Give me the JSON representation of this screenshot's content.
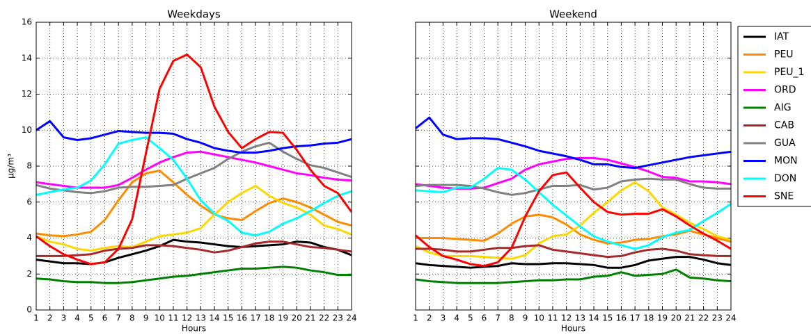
{
  "chart_data": [
    {
      "type": "line",
      "title": "Weekdays",
      "xlabel": "Hours",
      "ylabel": "µg/m³",
      "x": [
        1,
        2,
        3,
        4,
        5,
        6,
        7,
        8,
        9,
        10,
        11,
        12,
        13,
        14,
        15,
        16,
        17,
        18,
        19,
        20,
        21,
        22,
        23,
        24
      ],
      "xlim": [
        1,
        24
      ],
      "xticks": [
        1,
        2,
        3,
        4,
        5,
        6,
        7,
        8,
        9,
        10,
        11,
        12,
        13,
        14,
        15,
        16,
        17,
        18,
        19,
        20,
        21,
        22,
        23,
        24
      ],
      "ylim": [
        0,
        16
      ],
      "yticks": [
        0,
        2,
        4,
        6,
        8,
        10,
        12,
        14,
        16
      ],
      "grid": true,
      "show_ytick_labels": true,
      "series": [
        {
          "color": "#000000",
          "values": [
            2.8,
            2.7,
            2.6,
            2.6,
            2.55,
            2.65,
            2.9,
            3.1,
            3.3,
            3.55,
            3.9,
            3.8,
            3.75,
            3.65,
            3.55,
            3.5,
            3.55,
            3.6,
            3.65,
            3.8,
            3.75,
            3.5,
            3.35,
            3.05
          ]
        },
        {
          "color": "#ff8c00",
          "values": [
            4.25,
            4.15,
            4.1,
            4.2,
            4.35,
            5.0,
            6.1,
            7.1,
            7.6,
            7.75,
            7.1,
            6.4,
            5.8,
            5.3,
            5.1,
            5.0,
            5.5,
            5.95,
            6.2,
            6.0,
            5.7,
            5.3,
            4.9,
            4.7
          ]
        },
        {
          "color": "#ffd700",
          "values": [
            4.1,
            3.8,
            3.65,
            3.4,
            3.3,
            3.45,
            3.55,
            3.5,
            3.8,
            4.1,
            4.2,
            4.3,
            4.55,
            5.3,
            6.0,
            6.5,
            6.9,
            6.35,
            5.95,
            5.7,
            5.3,
            4.7,
            4.5,
            4.2
          ]
        },
        {
          "color": "#ff00ff",
          "values": [
            7.1,
            7.0,
            6.9,
            6.8,
            6.8,
            6.8,
            6.95,
            7.35,
            7.8,
            8.2,
            8.5,
            8.75,
            8.8,
            8.65,
            8.5,
            8.35,
            8.2,
            8.0,
            7.8,
            7.6,
            7.5,
            7.35,
            7.25,
            7.2
          ]
        },
        {
          "color": "#008000",
          "values": [
            1.75,
            1.7,
            1.6,
            1.55,
            1.55,
            1.5,
            1.5,
            1.55,
            1.65,
            1.75,
            1.85,
            1.9,
            2.0,
            2.1,
            2.2,
            2.3,
            2.3,
            2.35,
            2.4,
            2.35,
            2.2,
            2.1,
            1.95,
            1.95
          ]
        },
        {
          "color": "#a52a2a",
          "values": [
            3.0,
            3.0,
            3.0,
            3.05,
            3.1,
            3.3,
            3.4,
            3.45,
            3.6,
            3.6,
            3.55,
            3.45,
            3.35,
            3.2,
            3.3,
            3.5,
            3.7,
            3.8,
            3.8,
            3.65,
            3.5,
            3.45,
            3.35,
            3.25
          ]
        },
        {
          "color": "#808080",
          "values": [
            6.95,
            6.75,
            6.65,
            6.55,
            6.5,
            6.6,
            6.8,
            6.85,
            6.85,
            6.9,
            6.95,
            7.3,
            7.6,
            7.9,
            8.4,
            8.8,
            9.1,
            9.3,
            8.8,
            8.4,
            8.05,
            7.9,
            7.65,
            7.4
          ]
        },
        {
          "color": "#0000ff",
          "values": [
            10.0,
            10.5,
            9.6,
            9.45,
            9.55,
            9.75,
            9.95,
            9.9,
            9.85,
            9.85,
            9.8,
            9.5,
            9.3,
            9.0,
            8.85,
            8.75,
            8.75,
            8.85,
            9.0,
            9.1,
            9.15,
            9.25,
            9.3,
            9.5
          ]
        },
        {
          "color": "#00ffff",
          "values": [
            6.4,
            6.55,
            6.7,
            6.8,
            7.2,
            8.1,
            9.25,
            9.45,
            9.6,
            9.0,
            8.35,
            7.3,
            6.1,
            5.35,
            4.95,
            4.3,
            4.15,
            4.35,
            4.8,
            5.1,
            5.5,
            5.95,
            6.35,
            6.6
          ]
        },
        {
          "color": "#ff0000",
          "values": [
            4.1,
            3.55,
            3.1,
            2.8,
            2.55,
            2.65,
            3.4,
            5.05,
            8.7,
            12.3,
            13.85,
            14.2,
            13.5,
            11.3,
            9.9,
            9.0,
            9.5,
            9.9,
            9.85,
            8.9,
            7.8,
            6.9,
            6.5,
            5.45
          ]
        }
      ]
    },
    {
      "type": "line",
      "title": "Weekend",
      "xlabel": "Hours",
      "x": [
        1,
        2,
        3,
        4,
        5,
        6,
        7,
        8,
        9,
        10,
        11,
        12,
        13,
        14,
        15,
        16,
        17,
        18,
        19,
        20,
        21,
        22,
        23,
        24
      ],
      "xlim": [
        1,
        24
      ],
      "xticks": [
        1,
        2,
        3,
        4,
        5,
        6,
        7,
        8,
        9,
        10,
        11,
        12,
        13,
        14,
        15,
        16,
        17,
        18,
        19,
        20,
        21,
        22,
        23,
        24
      ],
      "ylim": [
        0,
        16
      ],
      "yticks": [
        0,
        2,
        4,
        6,
        8,
        10,
        12,
        14,
        16
      ],
      "grid": true,
      "show_ytick_labels": false,
      "legend": "outside right",
      "series": [
        {
          "name": "IAT",
          "color": "#000000",
          "values": [
            2.6,
            2.5,
            2.45,
            2.4,
            2.35,
            2.4,
            2.45,
            2.6,
            2.55,
            2.55,
            2.6,
            2.6,
            2.55,
            2.5,
            2.35,
            2.35,
            2.5,
            2.75,
            2.85,
            2.95,
            2.95,
            2.8,
            2.6,
            2.5
          ]
        },
        {
          "name": "PEU",
          "color": "#ff8c00",
          "values": [
            4.0,
            4.0,
            4.0,
            3.95,
            3.9,
            3.85,
            4.25,
            4.8,
            5.2,
            5.3,
            5.15,
            4.75,
            4.2,
            3.9,
            3.7,
            3.75,
            3.9,
            3.95,
            4.1,
            4.2,
            4.4,
            4.2,
            4.0,
            3.8
          ]
        },
        {
          "name": "PEU_1",
          "color": "#ffd700",
          "values": [
            3.55,
            3.2,
            3.0,
            3.0,
            3.0,
            2.95,
            2.9,
            2.85,
            3.05,
            3.7,
            4.1,
            4.2,
            4.7,
            5.4,
            6.0,
            6.65,
            7.1,
            6.6,
            5.7,
            5.3,
            4.85,
            4.5,
            4.1,
            3.9
          ]
        },
        {
          "name": "ORD",
          "color": "#ff00ff",
          "values": [
            7.0,
            6.9,
            6.8,
            6.75,
            6.75,
            6.8,
            7.05,
            7.3,
            7.8,
            8.1,
            8.25,
            8.4,
            8.45,
            8.45,
            8.35,
            8.15,
            7.95,
            7.7,
            7.4,
            7.35,
            7.15,
            7.15,
            7.1,
            7.0
          ]
        },
        {
          "name": "AIG",
          "color": "#008000",
          "values": [
            1.7,
            1.6,
            1.55,
            1.5,
            1.5,
            1.5,
            1.5,
            1.55,
            1.6,
            1.65,
            1.65,
            1.7,
            1.7,
            1.85,
            1.9,
            2.1,
            1.9,
            1.95,
            2.0,
            2.25,
            1.8,
            1.75,
            1.65,
            1.6
          ]
        },
        {
          "name": "CAB",
          "color": "#a52a2a",
          "values": [
            3.4,
            3.4,
            3.35,
            3.25,
            3.25,
            3.35,
            3.45,
            3.45,
            3.55,
            3.6,
            3.35,
            3.25,
            3.15,
            3.05,
            2.95,
            3.0,
            3.2,
            3.35,
            3.4,
            3.3,
            3.1,
            3.05,
            3.0,
            3.0
          ]
        },
        {
          "name": "GUA",
          "color": "#808080",
          "values": [
            6.9,
            6.95,
            6.95,
            6.95,
            6.9,
            6.75,
            6.55,
            6.4,
            6.5,
            6.7,
            6.9,
            6.9,
            6.95,
            6.7,
            6.8,
            7.15,
            7.25,
            7.3,
            7.25,
            7.25,
            7.0,
            6.8,
            6.75,
            6.75
          ]
        },
        {
          "name": "MON",
          "color": "#0000ff",
          "values": [
            10.1,
            10.7,
            9.75,
            9.5,
            9.55,
            9.55,
            9.5,
            9.3,
            9.1,
            8.85,
            8.7,
            8.55,
            8.35,
            8.1,
            8.1,
            7.95,
            7.9,
            8.05,
            8.2,
            8.35,
            8.5,
            8.6,
            8.7,
            8.8
          ]
        },
        {
          "name": "DON",
          "color": "#00ffff",
          "values": [
            6.65,
            6.6,
            6.55,
            6.8,
            6.8,
            7.3,
            7.9,
            7.8,
            7.25,
            6.55,
            5.85,
            5.25,
            4.65,
            4.1,
            3.8,
            3.6,
            3.4,
            3.6,
            4.05,
            4.3,
            4.45,
            4.95,
            5.4,
            5.9
          ]
        },
        {
          "name": "SNE",
          "color": "#ff0000",
          "values": [
            4.15,
            3.5,
            3.0,
            2.8,
            2.55,
            2.45,
            2.65,
            3.45,
            5.2,
            6.6,
            7.5,
            7.65,
            6.8,
            6.0,
            5.45,
            5.3,
            5.35,
            5.35,
            5.6,
            5.2,
            4.7,
            4.25,
            3.85,
            3.4
          ]
        }
      ]
    }
  ]
}
